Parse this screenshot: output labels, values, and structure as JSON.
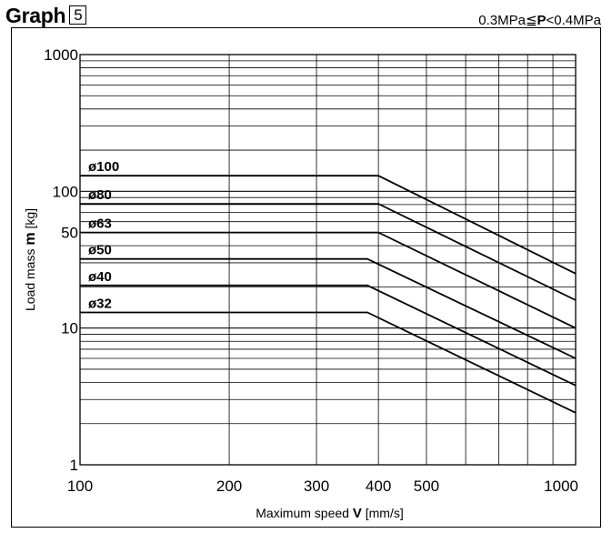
{
  "header": {
    "title": "Graph",
    "graph_number": "5",
    "condition_prefix": "0.3MPa≦",
    "condition_var": "P",
    "condition_suffix": "<0.4MPa"
  },
  "chart_data": {
    "type": "line",
    "x_scale": "log",
    "y_scale": "log",
    "xlim": [
      100,
      1000
    ],
    "ylim": [
      1,
      1000
    ],
    "xlabel_prefix": "Maximum speed ",
    "xlabel_var": "V",
    "xlabel_suffix": " [mm/s]",
    "ylabel_prefix": "Load mass ",
    "ylabel_var": "m",
    "ylabel_suffix": " [kg]",
    "x_tick_labels": [
      "100",
      "200",
      "300",
      "400",
      "500",
      "1000"
    ],
    "y_tick_labels": [
      "1000",
      "100",
      "50",
      "10",
      "1"
    ],
    "grid": true,
    "series": [
      {
        "name": "ø100",
        "x": [
          100,
          400,
          1000
        ],
        "y": [
          130,
          130,
          25
        ]
      },
      {
        "name": "ø80",
        "x": [
          100,
          400,
          1000
        ],
        "y": [
          81,
          81,
          16
        ]
      },
      {
        "name": "ø63",
        "x": [
          100,
          400,
          1000
        ],
        "y": [
          50,
          50,
          10
        ]
      },
      {
        "name": "ø50",
        "x": [
          100,
          380,
          1000
        ],
        "y": [
          32,
          32,
          6
        ]
      },
      {
        "name": "ø40",
        "x": [
          100,
          380,
          1000
        ],
        "y": [
          20.5,
          20.5,
          3.8
        ]
      },
      {
        "name": "ø32",
        "x": [
          100,
          380,
          1000
        ],
        "y": [
          13,
          13,
          2.4
        ]
      }
    ]
  }
}
